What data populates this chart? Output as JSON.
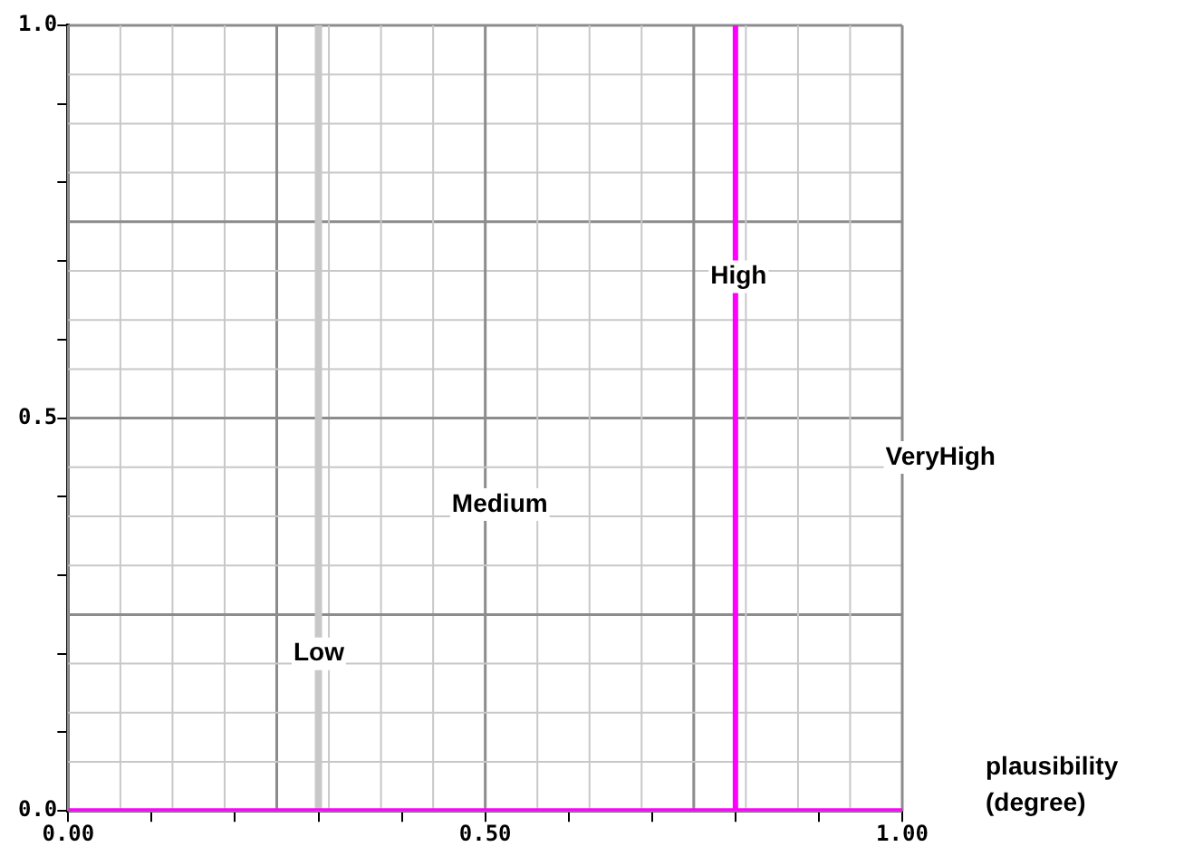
{
  "chart_data": {
    "type": "line",
    "xlabel": "plausibility (degree)",
    "x": [
      0,
      0.8,
      0.8,
      0.8,
      1
    ],
    "series": [
      {
        "color": "#ff00ff",
        "values": [
          0,
          0,
          1,
          0,
          0
        ]
      }
    ],
    "xlim": [
      0,
      1
    ],
    "ylim": [
      0,
      1
    ],
    "xticks": [
      {
        "value": 0,
        "label": "0.00"
      },
      {
        "value": 0.1,
        "label": null
      },
      {
        "value": 0.2,
        "label": null
      },
      {
        "value": 0.3,
        "label": null
      },
      {
        "value": 0.4,
        "label": null
      },
      {
        "value": 0.5,
        "label": "0.50"
      },
      {
        "value": 0.6,
        "label": null
      },
      {
        "value": 0.7,
        "label": null
      },
      {
        "value": 0.8,
        "label": null
      },
      {
        "value": 0.9,
        "label": null
      },
      {
        "value": 1,
        "label": "1.00"
      }
    ],
    "yticks": [
      {
        "value": 0,
        "label": "0.0"
      },
      {
        "value": 0.1,
        "label": null
      },
      {
        "value": 0.2,
        "label": null
      },
      {
        "value": 0.3,
        "label": null
      },
      {
        "value": 0.4,
        "label": null
      },
      {
        "value": 0.5,
        "label": "0.5"
      },
      {
        "value": 0.6,
        "label": null
      },
      {
        "value": 0.7,
        "label": null
      },
      {
        "value": 0.8,
        "label": null
      },
      {
        "value": 0.9,
        "label": null
      },
      {
        "value": 1,
        "label": "1.0"
      }
    ],
    "ref_lines": [
      {
        "axis": "x",
        "value": 0.3,
        "color": "#c8c8c8"
      }
    ],
    "annotations": [
      "Low",
      "Medium",
      "High",
      "VeryHigh"
    ],
    "grid": true,
    "marker": "none",
    "line_style": "solid",
    "legend": false
  }
}
